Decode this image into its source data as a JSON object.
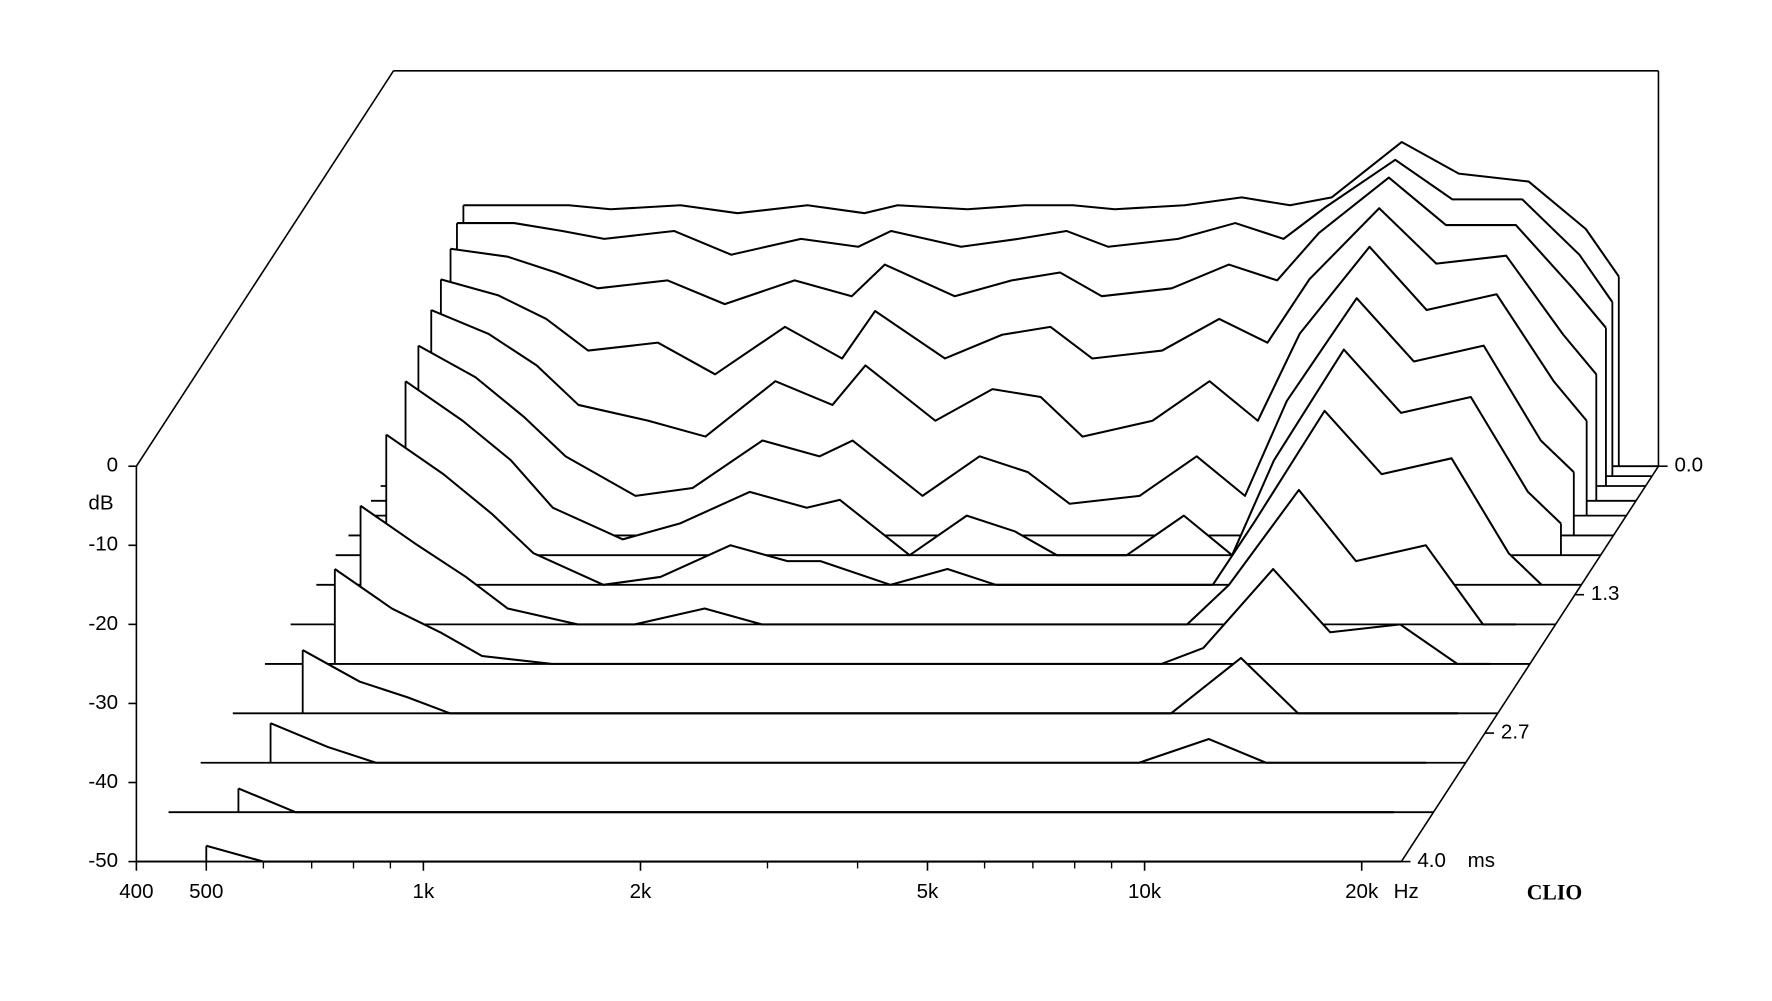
{
  "chart_data": {
    "type": "waterfall",
    "xlim": [
      400,
      22700
    ],
    "xticks": [
      400,
      500,
      {
        "value": 1000,
        "label": "1k"
      },
      {
        "value": 2000,
        "label": "2k"
      },
      {
        "value": 5000,
        "label": "5k"
      },
      {
        "value": 10000,
        "label": "10k"
      },
      {
        "value": 20000,
        "label": "20k"
      }
    ],
    "xminor": [
      600,
      700,
      800,
      900,
      3000,
      4000,
      6000,
      7000,
      8000,
      9000
    ],
    "x_unit": "Hz",
    "xscale": "log",
    "ylim": [
      -50,
      0
    ],
    "yticks": [
      0,
      -10,
      -20,
      -30,
      -40,
      -50
    ],
    "ylabel": "dB",
    "zlim": [
      0,
      4
    ],
    "zticks": [
      {
        "value": 0,
        "label": "0.0"
      },
      1.3,
      2.7,
      {
        "value": 4,
        "label": "4.0"
      }
    ],
    "z_unit": "ms",
    "brand": "CLIO",
    "line_color": "#000000",
    "x": [
      500,
      600,
      700,
      800,
      1000,
      1200,
      1500,
      1800,
      2000,
      2500,
      3000,
      3500,
      4000,
      5000,
      6000,
      7000,
      8000,
      10000,
      12000,
      15000,
      18000,
      20000
    ],
    "slices": [
      {
        "t": 0,
        "values": [
          -17,
          -17,
          -17,
          -17.5,
          -17,
          -18,
          -17,
          -18,
          -17,
          -17.5,
          -17,
          -17,
          -17.5,
          -17,
          -16,
          -17,
          -16,
          -9,
          -13,
          -14,
          -20,
          -26
        ]
      },
      {
        "t": 0.1,
        "values": [
          -18,
          -18,
          -19,
          -20,
          -19,
          -22,
          -20,
          -21,
          -19,
          -21,
          -20,
          -19,
          -21,
          -20,
          -18,
          -20,
          -16,
          -10,
          -15,
          -15,
          -22,
          -28
        ]
      },
      {
        "t": 0.2,
        "values": [
          -20,
          -21,
          -23,
          -25,
          -24,
          -27,
          -24,
          -26,
          -22,
          -26,
          -24,
          -23,
          -26,
          -25,
          -22,
          -24,
          -18,
          -11,
          -17,
          -17,
          -25,
          -30
        ]
      },
      {
        "t": 0.35,
        "values": [
          -22,
          -24,
          -27,
          -31,
          -30,
          -34,
          -28,
          -32,
          -26,
          -32,
          -29,
          -28,
          -32,
          -31,
          -27,
          -30,
          -22,
          -13,
          -20,
          -19,
          -29,
          -34
        ]
      },
      {
        "t": 0.5,
        "values": [
          -24,
          -27,
          -31,
          -36,
          -38,
          -40,
          -33,
          -36,
          -31,
          -38,
          -34,
          -35,
          -40,
          -38,
          -33,
          -38,
          -27,
          -16,
          -24,
          -22,
          -33,
          -38
        ]
      },
      {
        "t": 0.7,
        "values": [
          -26,
          -30,
          -35,
          -40,
          -45,
          -44,
          -38,
          -40,
          -38,
          -45,
          -40,
          -42,
          -46,
          -45,
          -40,
          -45,
          -33,
          -20,
          -28,
          -26,
          -38,
          -42
        ]
      },
      {
        "t": 0.9,
        "values": [
          -28,
          -33,
          -38,
          -44,
          -48,
          -46,
          -42,
          -44,
          -43,
          -50,
          -45,
          -47,
          -50,
          -50,
          -45,
          -50,
          -38,
          -24,
          -32,
          -30,
          -42,
          -46
        ]
      },
      {
        "t": 1.2,
        "values": [
          -31,
          -36,
          -41,
          -46,
          -50,
          -49,
          -45,
          -47,
          -47,
          -50,
          -48,
          -50,
          -50,
          -50,
          -50,
          -50,
          -42,
          -28,
          -36,
          -34,
          -46,
          -50
        ]
      },
      {
        "t": 1.6,
        "values": [
          -35,
          -40,
          -44,
          -48,
          -50,
          -50,
          -48,
          -50,
          -50,
          -50,
          -50,
          -50,
          -50,
          -50,
          -50,
          -50,
          -45,
          -33,
          -42,
          -40,
          -50,
          -50
        ]
      },
      {
        "t": 2.0,
        "values": [
          -38,
          -43,
          -46,
          -49,
          -50,
          -50,
          -50,
          -50,
          -50,
          -50,
          -50,
          -50,
          -50,
          -50,
          -50,
          -50,
          -48,
          -38,
          -46,
          -45,
          -50,
          -50
        ]
      },
      {
        "t": 2.5,
        "values": [
          -42,
          -46,
          -48,
          -50,
          -50,
          -50,
          -50,
          -50,
          -50,
          -50,
          -50,
          -50,
          -50,
          -50,
          -50,
          -50,
          -50,
          -43,
          -50,
          -50,
          -50,
          -50
        ]
      },
      {
        "t": 3.0,
        "values": [
          -45,
          -48,
          -50,
          -50,
          -50,
          -50,
          -50,
          -50,
          -50,
          -50,
          -50,
          -50,
          -50,
          -50,
          -50,
          -50,
          -50,
          -47,
          -50,
          -50,
          -50,
          -50
        ]
      },
      {
        "t": 3.5,
        "values": [
          -47,
          -50,
          -50,
          -50,
          -50,
          -50,
          -50,
          -50,
          -50,
          -50,
          -50,
          -50,
          -50,
          -50,
          -50,
          -50,
          -50,
          -50,
          -50,
          -50,
          -50,
          -50
        ]
      },
      {
        "t": 4.0,
        "values": [
          -48,
          -50,
          -50,
          -50,
          -50,
          -50,
          -50,
          -50,
          -50,
          -50,
          -50,
          -50,
          -50,
          -50,
          -50,
          -50,
          -50,
          -50,
          -50,
          -50,
          -50,
          -50
        ]
      }
    ]
  }
}
